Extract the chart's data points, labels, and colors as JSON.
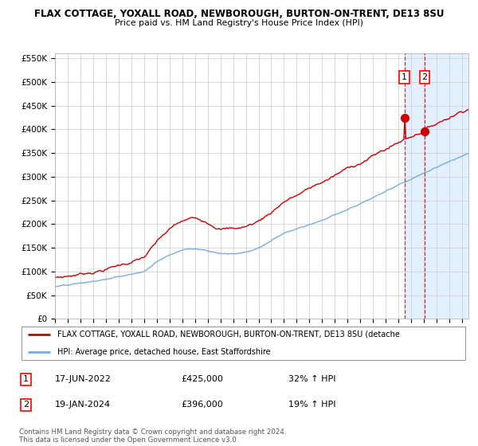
{
  "title1": "FLAX COTTAGE, YOXALL ROAD, NEWBOROUGH, BURTON-ON-TRENT, DE13 8SU",
  "title2": "Price paid vs. HM Land Registry's House Price Index (HPI)",
  "ylim": [
    0,
    560000
  ],
  "yticks": [
    0,
    50000,
    100000,
    150000,
    200000,
    250000,
    300000,
    350000,
    400000,
    450000,
    500000,
    550000
  ],
  "ytick_labels": [
    "£0",
    "£50K",
    "£100K",
    "£150K",
    "£200K",
    "£250K",
    "£300K",
    "£350K",
    "£400K",
    "£450K",
    "£500K",
    "£550K"
  ],
  "red_color": "#cc0000",
  "blue_color": "#7aaddc",
  "background_color": "#ffffff",
  "grid_color": "#cccccc",
  "shade_color": "#ddeeff",
  "dashed_line_color": "#cc0000",
  "legend_label_red": "FLAX COTTAGE, YOXALL ROAD, NEWBOROUGH, BURTON-ON-TRENT, DE13 8SU (detache",
  "legend_label_blue": "HPI: Average price, detached house, East Staffordshire",
  "transaction1_date": "17-JUN-2022",
  "transaction1_price": "£425,000",
  "transaction1_pct": "32% ↑ HPI",
  "transaction2_date": "19-JAN-2024",
  "transaction2_price": "£396,000",
  "transaction2_pct": "19% ↑ HPI",
  "footnote": "Contains HM Land Registry data © Crown copyright and database right 2024.\nThis data is licensed under the Open Government Licence v3.0.",
  "transaction1_year": 2022.46,
  "transaction2_year": 2024.05,
  "transaction1_value": 425000,
  "transaction2_value": 396000,
  "xmin": 1995,
  "xmax": 2027.5
}
